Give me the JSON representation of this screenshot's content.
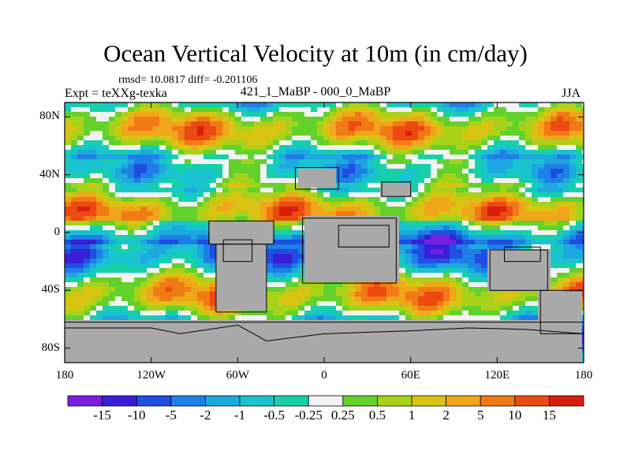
{
  "chart_data": {
    "type": "heatmap",
    "title": "Ocean Vertical Velocity at 10m (in cm/day)",
    "stats_text": "rmsd= 10.0817 diff= -0.201106",
    "left_label": "Expt = teXXg-texka",
    "center_label": "421_1_MaBP - 000_0_MaBP",
    "right_label": "JJA",
    "x_ticks": [
      "180",
      "120W",
      "60W",
      "0",
      "60E",
      "120E",
      "180"
    ],
    "x_tick_values": [
      -180,
      -120,
      -60,
      0,
      60,
      120,
      180
    ],
    "xlim": [
      -180,
      180
    ],
    "y_ticks": [
      "80N",
      "40N",
      "0",
      "40S",
      "80S"
    ],
    "y_tick_values": [
      80,
      40,
      0,
      -40,
      -80
    ],
    "ylim": [
      -90,
      90
    ],
    "colorbar": {
      "levels": [
        "-15",
        "-10",
        "-5",
        "-2",
        "-1",
        "-0.5",
        "-0.25",
        "0.25",
        "0.5",
        "1",
        "2",
        "5",
        "10",
        "15"
      ],
      "colors": [
        "#7a1fe0",
        "#3a1fd8",
        "#1f4ee0",
        "#1e7fe6",
        "#1ea8e0",
        "#19c4d0",
        "#16d0a8",
        "#f2f2f2",
        "#62d22a",
        "#a8d21a",
        "#d8c412",
        "#f0a61a",
        "#f07a14",
        "#ec4a12",
        "#d81e0c"
      ]
    },
    "land_color": "#a9a9a9"
  }
}
